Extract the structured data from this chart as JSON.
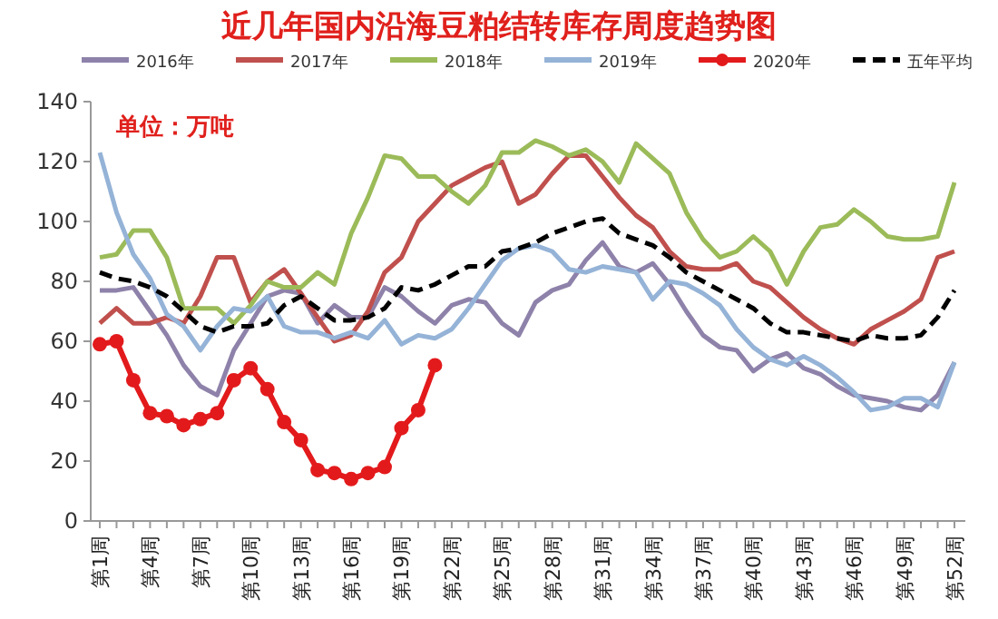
{
  "chart_data": {
    "type": "line",
    "title": "近几年国内沿海豆粕结转库存周度趋势图",
    "annotations": [
      "单位：万吨"
    ],
    "categories": [
      "第1周",
      null,
      null,
      "第4周",
      null,
      null,
      "第7周",
      null,
      null,
      "第10周",
      null,
      null,
      "第13周",
      null,
      null,
      "第16周",
      null,
      null,
      "第19周",
      null,
      null,
      "第22周",
      null,
      null,
      "第25周",
      null,
      null,
      "第28周",
      null,
      null,
      "第31周",
      null,
      null,
      "第34周",
      null,
      null,
      "第37周",
      null,
      null,
      "第40周",
      null,
      null,
      "第43周",
      null,
      null,
      "第46周",
      null,
      null,
      "第49周",
      null,
      null,
      "第52周"
    ],
    "ylim": [
      0,
      140
    ],
    "yticks": [
      0,
      20,
      40,
      60,
      80,
      100,
      120,
      140
    ],
    "grid": false,
    "legend": "top",
    "marker": "none",
    "line_style": "solid",
    "series": [
      {
        "name": "2016年",
        "color": "#8e82aa",
        "values": [
          77,
          77,
          78,
          70,
          62,
          52,
          45,
          42,
          57,
          66,
          75,
          77,
          76,
          66,
          72,
          68,
          68,
          78,
          75,
          70,
          66,
          72,
          74,
          73,
          66,
          62,
          73,
          77,
          79,
          87,
          93,
          85,
          83,
          86,
          79,
          70,
          62,
          58,
          57,
          50,
          54,
          56,
          51,
          49,
          45,
          42,
          41,
          40,
          38,
          37,
          42,
          53
        ]
      },
      {
        "name": "2017年",
        "color": "#c0504d",
        "values": [
          66,
          71,
          66,
          66,
          68,
          66,
          75,
          88,
          88,
          73,
          80,
          84,
          76,
          68,
          60,
          62,
          70,
          83,
          88,
          100,
          106,
          112,
          115,
          118,
          120,
          106,
          109,
          116,
          122,
          122,
          115,
          108,
          102,
          98,
          90,
          85,
          84,
          84,
          86,
          80,
          78,
          73,
          68,
          64,
          61,
          59,
          64,
          67,
          70,
          74,
          88,
          90
        ]
      },
      {
        "name": "2018年",
        "color": "#9bbb59",
        "values": [
          88,
          89,
          97,
          97,
          88,
          71,
          71,
          71,
          66,
          72,
          80,
          78,
          78,
          83,
          79,
          96,
          108,
          122,
          121,
          115,
          115,
          110,
          106,
          112,
          123,
          123,
          127,
          125,
          122,
          124,
          120,
          113,
          126,
          121,
          116,
          103,
          94,
          88,
          90,
          95,
          90,
          79,
          90,
          98,
          99,
          104,
          100,
          95,
          94,
          94,
          95,
          113
        ]
      },
      {
        "name": "2019年",
        "color": "#95b3d7",
        "values": [
          123,
          103,
          89,
          81,
          69,
          65,
          57,
          65,
          71,
          70,
          75,
          65,
          63,
          63,
          61,
          63,
          61,
          67,
          59,
          62,
          61,
          64,
          71,
          79,
          87,
          91,
          92,
          90,
          84,
          83,
          85,
          84,
          83,
          74,
          80,
          79,
          76,
          72,
          64,
          58,
          54,
          52,
          55,
          52,
          48,
          43,
          37,
          38,
          41,
          41,
          38,
          53
        ]
      },
      {
        "name": "2020年",
        "color": "#e31a1c",
        "marker": "circle",
        "values": [
          59,
          60,
          47,
          36,
          35,
          32,
          34,
          36,
          47,
          51,
          44,
          33,
          27,
          17,
          16,
          14,
          16,
          18,
          31,
          37,
          52,
          null,
          null,
          null,
          null,
          null,
          null,
          null,
          null,
          null,
          null,
          null,
          null,
          null,
          null,
          null,
          null,
          null,
          null,
          null,
          null,
          null,
          null,
          null,
          null,
          null,
          null,
          null,
          null,
          null,
          null,
          null
        ]
      },
      {
        "name": "五年平均",
        "color": "#000000",
        "line_style": "dashed",
        "values": [
          83,
          81,
          80,
          78,
          75,
          70,
          65,
          63,
          65,
          65,
          66,
          72,
          75,
          71,
          67,
          67,
          68,
          71,
          78,
          77,
          79,
          82,
          85,
          85,
          90,
          91,
          93,
          96,
          98,
          100,
          101,
          96,
          94,
          92,
          88,
          83,
          80,
          77,
          74,
          71,
          66,
          63,
          63,
          62,
          61,
          60,
          62,
          61,
          61,
          62,
          68,
          77
        ]
      }
    ]
  }
}
